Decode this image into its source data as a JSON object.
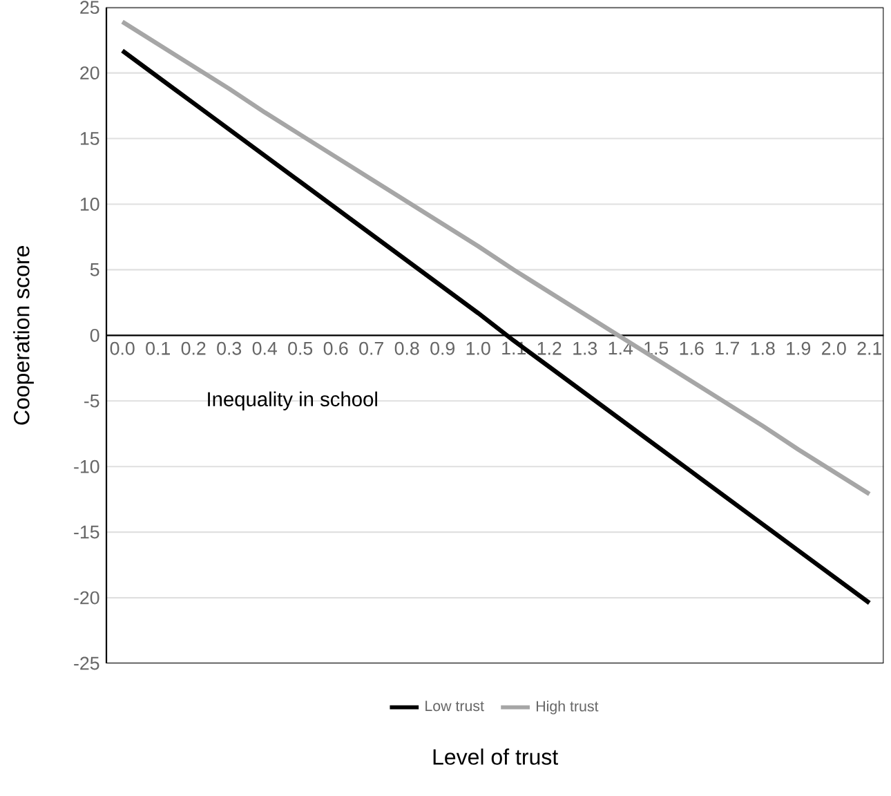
{
  "chart_data": {
    "type": "line",
    "xlabel": "Level of trust",
    "ylabel": "Cooperation score",
    "annotations": [
      "Inequality in school"
    ],
    "categories": [
      "0.0",
      "0.1",
      "0.2",
      "0.3",
      "0.4",
      "0.5",
      "0.6",
      "0.7",
      "0.8",
      "0.9",
      "1.0",
      "1.1",
      "1.2",
      "1.3",
      "1.4",
      "1.5",
      "1.6",
      "1.7",
      "1.8",
      "1.9",
      "2.0",
      "2.1"
    ],
    "ylim": [
      -25,
      25
    ],
    "yticks": [
      -25,
      -20,
      -15,
      -10,
      -5,
      0,
      5,
      10,
      15,
      20,
      25
    ],
    "grid": "y",
    "legend": "bottom",
    "marker": "none",
    "line_style": "solid",
    "series": [
      {
        "name": "Low trust",
        "color": "#000000",
        "values": [
          21.7,
          19.7,
          17.7,
          15.7,
          13.7,
          11.7,
          9.7,
          7.7,
          5.7,
          3.7,
          1.7,
          -0.4,
          -2.4,
          -4.4,
          -6.4,
          -8.4,
          -10.4,
          -12.4,
          -14.4,
          -16.4,
          -18.4,
          -20.4
        ]
      },
      {
        "name": "High trust",
        "color": "#a6a6a6",
        "values": [
          23.9,
          22.2,
          20.5,
          18.8,
          17.0,
          15.3,
          13.6,
          11.9,
          10.2,
          8.5,
          6.8,
          5.0,
          3.3,
          1.6,
          -0.1,
          -1.8,
          -3.5,
          -5.2,
          -6.9,
          -8.7,
          -10.4,
          -12.1
        ]
      }
    ]
  }
}
